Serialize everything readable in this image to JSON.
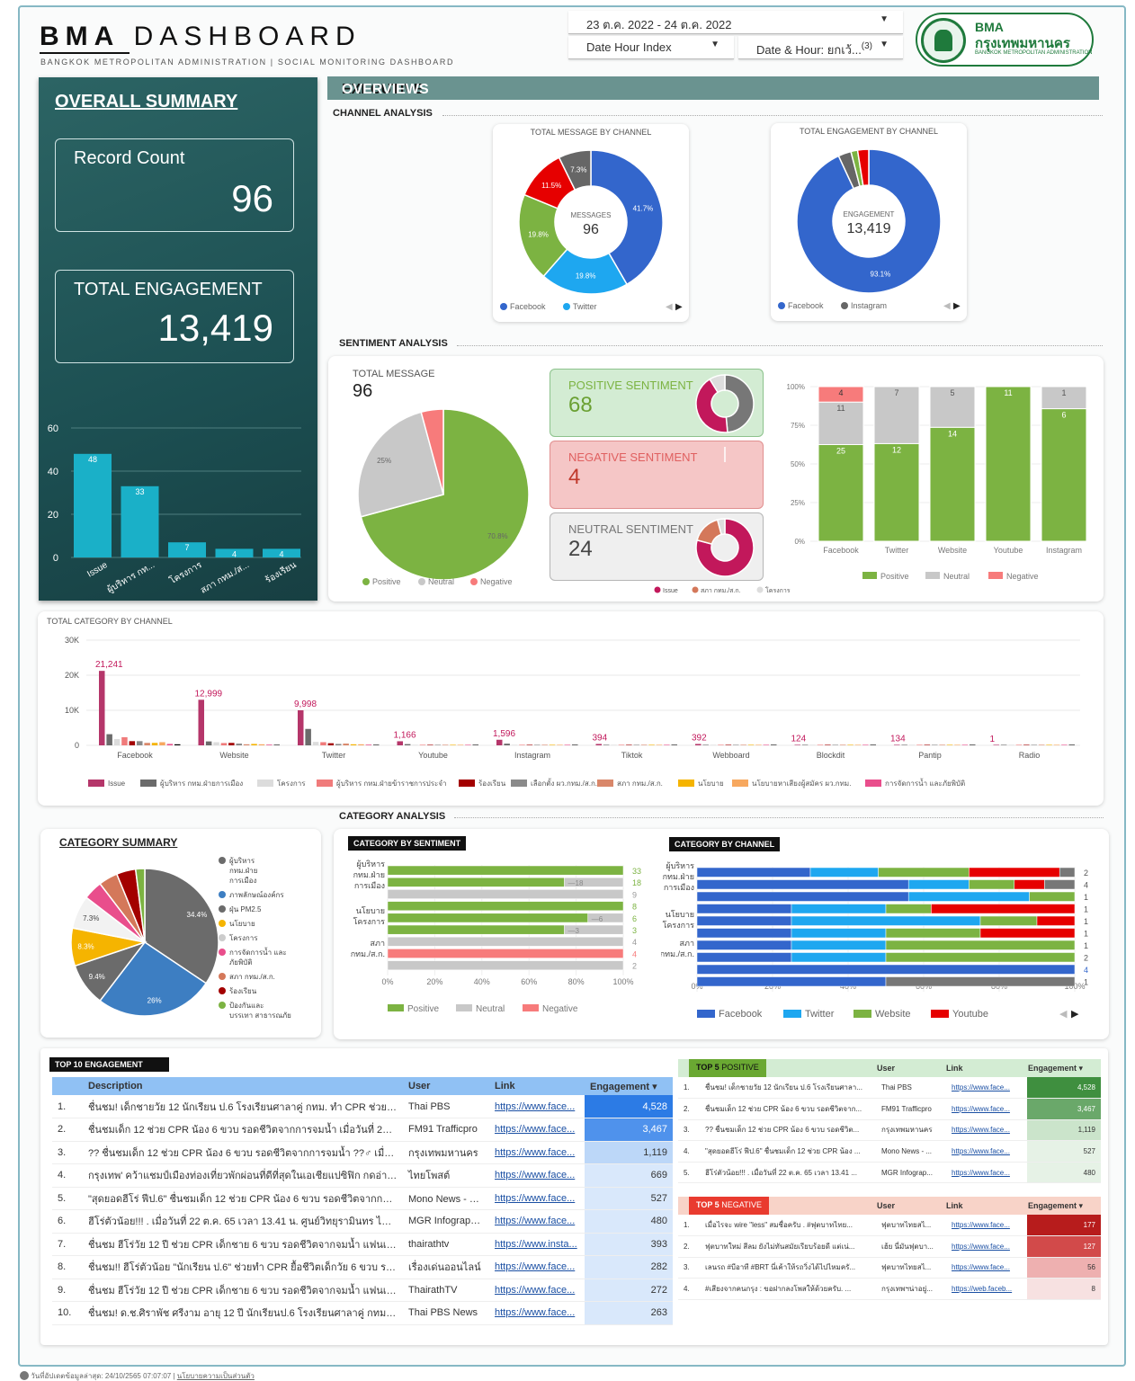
{
  "header": {
    "title_bold": "BMA",
    "title_light": "DASHBOARD",
    "subtitle": "BANGKOK METROPOLITAN ADMINISTRATION | SOCIAL MONITORING DASHBOARD",
    "date_range": "23 ต.ค. 2022 - 24 ต.ค. 2022",
    "filter_date_hour_index": "Date Hour Index",
    "filter_date_hour": "Date & Hour: ยกเว้...",
    "filter_date_hour_count": "(3)",
    "logo_l1": "BMA",
    "logo_l2": "กรุงเทพมหานคร",
    "logo_l3": "BANGKOK METROPOLITAN ADMINISTRATION"
  },
  "summary": {
    "title": "OVERALL SUMMARY",
    "record_label": "Record Count",
    "record_value": "96",
    "engagement_label": "TOTAL ENGAGEMENT",
    "engagement_value": "13,419"
  },
  "exec": {
    "title_a": "EXECUTIVE",
    "title_b": "OVERVIEWS",
    "channel_analysis": "CHANNEL ANALYSIS",
    "sentiment_analysis": "SENTIMENT ANALYSIS",
    "category_analysis": "CATEGORY ANALYSIS"
  },
  "colors": {
    "facebook": "#3366cc",
    "twitter": "#1ea7f0",
    "website": "#7cb342",
    "youtube": "#e60000",
    "instagram": "#666666",
    "positive": "#7cb342",
    "neutral": "#c8c8c8",
    "negative": "#f77b7b",
    "teal": "#1ab0c8"
  },
  "sentiment": {
    "total_label": "TOTAL MESSAGE",
    "total_value": "96",
    "positive_label": "POSITIVE SENTIMENT",
    "positive_value": "68",
    "negative_label": "NEGATIVE SENTIMENT",
    "negative_value": "4",
    "neutral_label": "NEUTRAL SENTIMENT",
    "neutral_value": "24",
    "mini_legend": [
      "Issue",
      "สภา กทม./ส.ก.",
      "โครงการ"
    ]
  },
  "category_summary": {
    "title": "CATEGORY SUMMARY"
  },
  "cat_by_sentiment": {
    "title": "CATEGORY BY SENTIMENT"
  },
  "cat_by_channel": {
    "title": "CATEGORY BY CHANNEL"
  },
  "top10": {
    "title": "TOP 10 ENGAGEMENT",
    "headers": [
      "Description",
      "User",
      "Link",
      "Engagement ▾"
    ],
    "rows": [
      {
        "n": "1.",
        "desc": "ชื่นชม! เด็กชายวัย 12 นักเรียน ป.6 โรงเรียนศาลาคู่ กทม. ทำ CPR ช่วยน้อง 6 ข...",
        "user": "Thai PBS",
        "link": "https://www.face...",
        "eng": "4,528"
      },
      {
        "n": "2.",
        "desc": "ชื่นชมเด็ก 12 ช่วย CPR น้อง 6 ขวบ รอดชีวิตจากการจมน้ำ เมื่อวันที่ 22 ต.ค. 65 ...",
        "user": "FM91 Trafficpro",
        "link": "https://www.face...",
        "eng": "3,467"
      },
      {
        "n": "3.",
        "desc": "?? ชื่นชมเด็ก 12 ช่วย CPR น้อง 6 ขวบ รอดชีวิตจากการจมน้ำ ??♂ เมื่อวันที่ 22 ...",
        "user": "กรุงเทพมหานคร",
        "link": "https://www.face...",
        "eng": "1,119"
      },
      {
        "n": "4.",
        "desc": "กรุงเทพ' คว้าแชมป์เมืองท่องเที่ยวพักผ่อนที่ดีที่สุดในเอเชียแปซิฟิก กดอ่าน htt...",
        "user": "ไทยโพสต์",
        "link": "https://www.face...",
        "eng": "669"
      },
      {
        "n": "5.",
        "desc": "\"สุดยอดฮีโร่ ฟีป.6\" ชื่นชมเด็ก 12 ช่วย CPR น้อง 6 ขวบ รอดชีวิตจากการจมน้ำ ว...",
        "user": "Mono News - ข่...",
        "link": "https://www.face...",
        "eng": "527"
      },
      {
        "n": "6.",
        "desc": "ฮีโร่ตัวน้อย!!! . เมื่อวันที่ 22 ต.ค. 65 เวลา 13.41 น. ศูนย์วิทยุรามินทร ได้รับแจ้งเห...",
        "user": "MGR Infographi...",
        "link": "https://www.face...",
        "eng": "480"
      },
      {
        "n": "7.",
        "desc": "ชื่นชม ฮีโร่วัย 12 ปี ช่วย CPR เด็กชาย 6 ขวบ รอดชีวิตจากจมน้ำ แฟนเพจ \"สำนั...",
        "user": "thairathtv",
        "link": "https://www.insta...",
        "eng": "393"
      },
      {
        "n": "8.",
        "desc": "ชื่นชม!! ฮีโร่ตัวน้อย \"นักเรียน ป.6\" ช่วยทำ CPR ยื้อชีวิตเด็กวัย 6 ขวบ รอดตา...",
        "user": "เรื่องเด่นออนไลน์",
        "link": "https://www.face...",
        "eng": "282"
      },
      {
        "n": "9.",
        "desc": "ชื่นชม ฮีโร่วัย 12 ปี ช่วย CPR เด็กชาย 6 ขวบ รอดชีวิตจากจมน้ำ แฟนเพจ \"สำนั...",
        "user": "ThairathTV",
        "link": "https://www.face...",
        "eng": "272"
      },
      {
        "n": "10.",
        "desc": "ชื่นชม! ด.ช.ศิราพัช ศรีงาม อายุ 12 ปี นักเรียนป.6 โรงเรียนศาลาคู่ กทม. ทำ CP...",
        "user": "Thai PBS News",
        "link": "https://www.face...",
        "eng": "263"
      }
    ]
  },
  "top5pos": {
    "title_a": "TOP 5",
    "title_b": "POSITIVE",
    "headers": [
      "User",
      "Link",
      "Engagement ▾"
    ],
    "rows": [
      {
        "n": "1.",
        "desc": "ชื่นชม! เด็กชายวัย 12 นักเรียน ป.6 โรงเรียนศาลา...",
        "user": "Thai PBS",
        "link": "https://www.face...",
        "eng": "4,528"
      },
      {
        "n": "2.",
        "desc": "ชื่นชมเด็ก 12 ช่วย CPR น้อง 6 ขวบ รอดชีวิตจาก...",
        "user": "FM91 Trafficpro",
        "link": "https://www.face...",
        "eng": "3,467"
      },
      {
        "n": "3.",
        "desc": "?? ชื่นชมเด็ก 12 ช่วย CPR น้อง 6 ขวบ รอดชีวิต...",
        "user": "กรุงเทพมหานคร",
        "link": "https://www.face...",
        "eng": "1,119"
      },
      {
        "n": "4.",
        "desc": "\"สุดยอดฮีโร่ ฟีป.6\" ชื่นชมเด็ก 12 ช่วย CPR น้อง ...",
        "user": "Mono News - ...",
        "link": "https://www.face...",
        "eng": "527"
      },
      {
        "n": "5.",
        "desc": "ฮีโร่ตัวน้อย!!! . เมื่อวันที่ 22 ต.ค. 65 เวลา 13.41 ...",
        "user": "MGR Infograp...",
        "link": "https://www.face...",
        "eng": "480"
      }
    ]
  },
  "top5neg": {
    "title_a": "TOP 5",
    "title_b": "NEGATIVE",
    "headers": [
      "User",
      "Link",
      "Engagement ▾"
    ],
    "rows": [
      {
        "n": "1.",
        "desc": "เมื่อไรจะ wire \"less\" สมชื่อครับ . #ฟุตบาทไทย...",
        "user": "ฟุตบาทไทยสไ...",
        "link": "https://www.face...",
        "eng": "177"
      },
      {
        "n": "2.",
        "desc": "ฟุตบาทใหม่ สีลม ยังไม่ทันสมัยเรียบร้อยดี แต่เน่...",
        "user": "เฮ้ย นี่มันฟุตบา...",
        "link": "https://www.face...",
        "eng": "127"
      },
      {
        "n": "3.",
        "desc": "เลนรถ #บีอาที #BRT นี่เค้าให้รถวิ่งได้ไปไหมครั...",
        "user": "ฟุตบาทไทยสไ...",
        "link": "https://www.face...",
        "eng": "56"
      },
      {
        "n": "4.",
        "desc": "#เสียงจากคนกรุง : ขอฝากลงโพสให้ด้วยครับ. ...",
        "user": "กรุงเทพฯน่าอยู่...",
        "link": "https://web.faceb...",
        "eng": "8"
      }
    ]
  },
  "footer": {
    "updated": "วันที่อัปเดตข้อมูลล่าสุด: 24/10/2565 07:07:07",
    "privacy": "นโยบายความเป็นส่วนตัว"
  },
  "chart_data": [
    {
      "id": "summary_bar",
      "type": "bar",
      "categories": [
        "Issue",
        "ผู้บริหาร กท...",
        "โครงการ",
        "สภา กทม./ส...",
        "ร้องเรียน"
      ],
      "values": [
        48,
        33,
        7,
        4,
        4
      ],
      "ylim": [
        0,
        60
      ],
      "yticks": [
        0,
        20,
        40,
        60
      ]
    },
    {
      "id": "msg_by_channel",
      "type": "pie",
      "title": "TOTAL MESSAGE BY CHANNEL",
      "center_label": "MESSAGES",
      "center_value": "96",
      "slices": [
        {
          "label": "Facebook",
          "value": 41.7
        },
        {
          "label": "Twitter",
          "value": 19.8
        },
        {
          "label": "Website",
          "value": 19.8
        },
        {
          "label": "Youtube",
          "value": 11.5
        },
        {
          "label": "Instagram",
          "value": 7.3
        }
      ],
      "legend": [
        "Facebook",
        "Twitter"
      ]
    },
    {
      "id": "eng_by_channel",
      "type": "pie",
      "title": "TOTAL ENGAGEMENT BY CHANNEL",
      "center_label": "ENGAGEMENT",
      "center_value": "13,419",
      "slices": [
        {
          "label": "Facebook",
          "value": 93.1
        },
        {
          "label": "Instagram",
          "value": 2.9
        },
        {
          "label": "Website",
          "value": 1.5
        },
        {
          "label": "Youtube",
          "value": 2.5
        }
      ],
      "legend": [
        "Facebook",
        "Instagram"
      ]
    },
    {
      "id": "sentiment_pie",
      "type": "pie",
      "slices": [
        {
          "label": "Positive",
          "value": 70.8
        },
        {
          "label": "Neutral",
          "value": 25
        },
        {
          "label": "Negative",
          "value": 4.2
        }
      ],
      "legend": [
        "Positive",
        "Neutral",
        "Negative"
      ]
    },
    {
      "id": "sentiment_by_channel",
      "type": "bar",
      "categories": [
        "Facebook",
        "Twitter",
        "Website",
        "Youtube",
        "Instagram"
      ],
      "series": [
        {
          "name": "Positive",
          "values": [
            25,
            12,
            14,
            11,
            6
          ]
        },
        {
          "name": "Neutral",
          "values": [
            11,
            7,
            5,
            0,
            1
          ]
        },
        {
          "name": "Negative",
          "values": [
            4,
            0,
            0,
            0,
            0
          ]
        }
      ],
      "yticks": [
        "0%",
        "25%",
        "50%",
        "75%",
        "100%"
      ]
    },
    {
      "id": "category_by_channel_totals",
      "type": "bar",
      "title": "TOTAL CATEGORY BY CHANNEL",
      "categories": [
        "Facebook",
        "Website",
        "Twitter",
        "Youtube",
        "Instagram",
        "Tiktok",
        "Webboard",
        "Blockdit",
        "Pantip",
        "Radio"
      ],
      "ylim": [
        0,
        30000
      ],
      "yticks": [
        "0",
        "10K",
        "20K",
        "30K"
      ],
      "top_values": [
        21241,
        12999,
        9998,
        1166,
        1596,
        394,
        392,
        124,
        134,
        1
      ],
      "legend": [
        "Issue",
        "ผู้บริหาร กทม.ฝ่ายการเมือง",
        "โครงการ",
        "ผู้บริหาร กทม.ฝ่ายข้าราชการประจำ",
        "ร้องเรียน",
        "เลือกตั้ง ผว.กทม./ส.ก.",
        "สภา กทม./ส.ก.",
        "นโยบาย",
        "นโยบายหาเสียงผู้สมัคร ผว.กทม.",
        "การจัดการน้ำ และภัยพิบัติ"
      ]
    },
    {
      "id": "category_summary",
      "type": "pie",
      "title": "CATEGORY SUMMARY",
      "slices": [
        {
          "label": "ผู้บริหาร กทม.ฝ่ายการเมือง",
          "value": 34.4
        },
        {
          "label": "ภาพลักษณ์องค์กร",
          "value": 26
        },
        {
          "label": "ฝุ่น PM2.5",
          "value": 9.4
        },
        {
          "label": "นโยบาย",
          "value": 8.3
        },
        {
          "label": "โครงการ",
          "value": 7.3
        },
        {
          "label": "การจัดการน้ำ และภัยพิบัติ",
          "value": 4.2
        },
        {
          "label": "สภา กทม./ส.ก.",
          "value": 4.2
        },
        {
          "label": "ร้องเรียน",
          "value": 4.2
        },
        {
          "label": "ป้องกันและบรรเทาสาธารณภัย",
          "value": 2
        }
      ],
      "legend": [
        "ผู้บริหาร กทม.ฝ่าย การเมือง",
        "ภาพลักษณ์องค์กร",
        "ฝุ่น PM2.5",
        "นโยบาย",
        "โครงการ",
        "การจัดการน้ำ และ ภัยพิบัติ",
        "สภา กทม./ส.ก.",
        "ร้องเรียน",
        "ป้องกันและ บรรเทา สาธารณภัย"
      ]
    },
    {
      "id": "category_by_sentiment",
      "type": "bar",
      "title": "CATEGORY BY SENTIMENT",
      "row_labels": [
        "ผู้บริหาร กทม.ฝ่าย การเมือง",
        "นโยบาย โครงการ",
        "สภา กทม./ส.ก."
      ],
      "totals": [
        "33",
        "18",
        "9",
        "8",
        "6",
        "3",
        "4",
        "4",
        "2"
      ],
      "inner_labels": [
        "",
        "18",
        "",
        "",
        "6",
        "3",
        "",
        "",
        ""
      ],
      "xticks": [
        "0%",
        "20%",
        "40%",
        "60%",
        "80%",
        "100%"
      ],
      "legend": [
        "Positive",
        "Neutral",
        "Negative"
      ]
    },
    {
      "id": "category_by_channel",
      "type": "bar",
      "title": "CATEGORY BY CHANNEL",
      "row_labels": [
        "ผู้บริหาร กทม.ฝ่าย การเมือง",
        "นโยบาย โครงการ",
        "สภา กทม./ส.ก."
      ],
      "totals": [
        "2",
        "4",
        "1",
        "1",
        "1",
        "1",
        "1",
        "2",
        "4",
        "1"
      ],
      "xticks": [
        "0%",
        "20%",
        "40%",
        "60%",
        "80%",
        "100%"
      ],
      "legend": [
        "Facebook",
        "Twitter",
        "Website",
        "Youtube"
      ]
    }
  ]
}
